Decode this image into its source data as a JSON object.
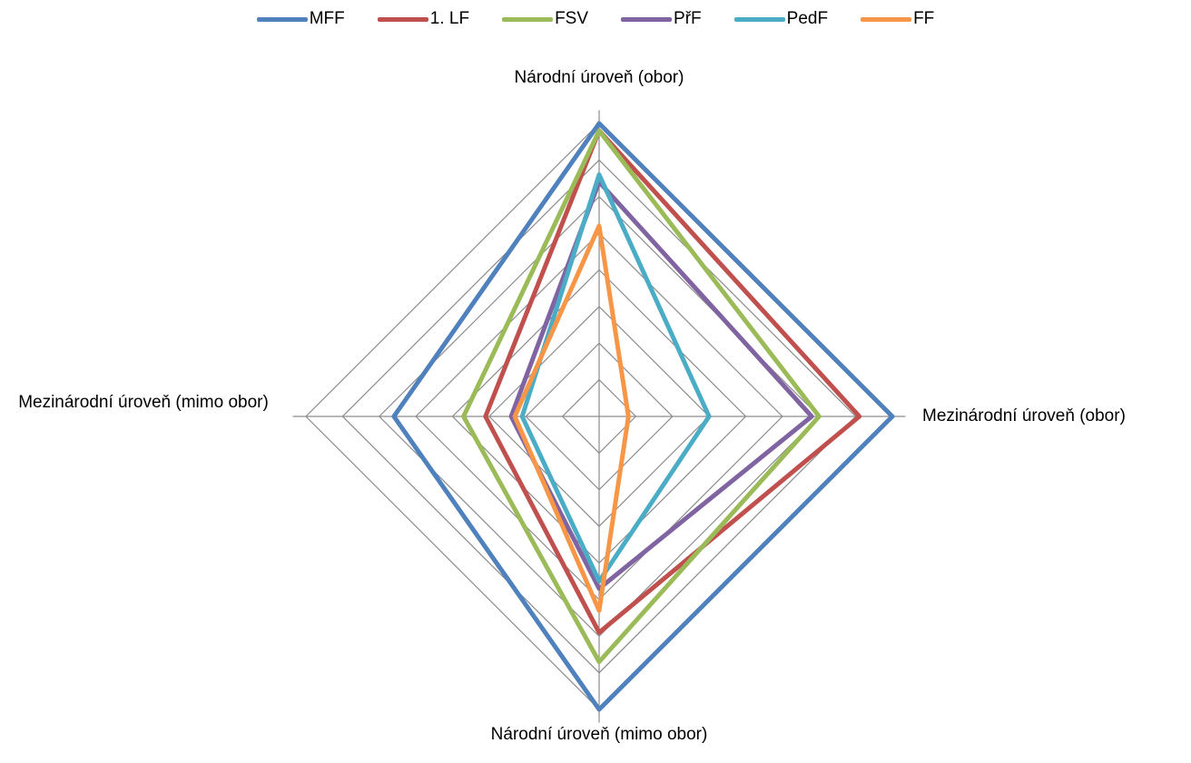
{
  "chart_data": {
    "type": "radar",
    "axes": [
      "Národní úroveň (obor)",
      "Mezinárodní úroveň (obor)",
      "Národní úroveň (mimo obor)",
      "Mezinárodní úroveň (mimo obor)"
    ],
    "rlim": [
      0,
      8
    ],
    "grid": true,
    "legend_position": "top",
    "series": [
      {
        "name": "MFF",
        "color": "#4F81BD",
        "values": [
          8.0,
          8.0,
          8.0,
          5.6
        ]
      },
      {
        "name": "1. LF",
        "color": "#C0504D",
        "values": [
          7.8,
          7.1,
          5.9,
          3.1
        ]
      },
      {
        "name": "FSV",
        "color": "#9BBB59",
        "values": [
          7.8,
          6.0,
          6.7,
          3.7
        ]
      },
      {
        "name": "PřF",
        "color": "#8064A2",
        "values": [
          6.4,
          5.8,
          4.7,
          2.4
        ]
      },
      {
        "name": "PedF",
        "color": "#4BACC6",
        "values": [
          6.6,
          3.0,
          4.5,
          2.1
        ]
      },
      {
        "name": "FF",
        "color": "#F79646",
        "values": [
          5.2,
          0.8,
          5.3,
          2.3
        ]
      }
    ]
  }
}
